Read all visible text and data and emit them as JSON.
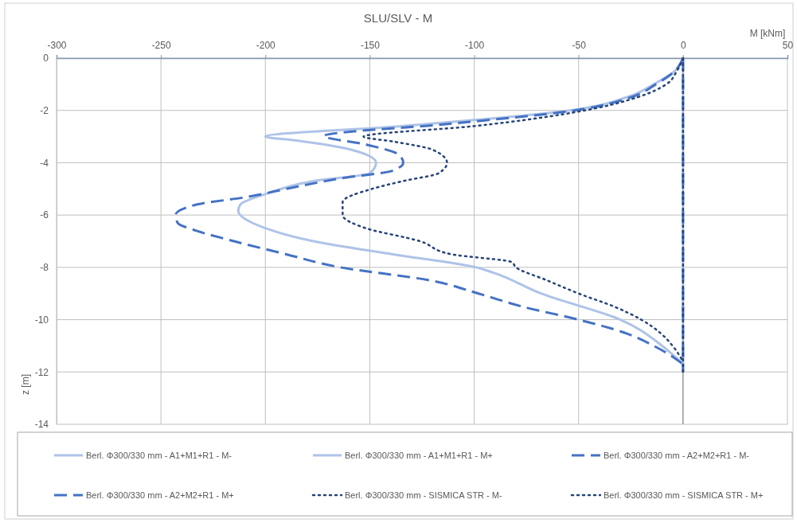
{
  "chart_data": {
    "type": "line",
    "title": "SLU/SLV - M",
    "xlabel": "M [kNm]",
    "ylabel": "z [m]",
    "xlim": [
      -300,
      50
    ],
    "xticks": [
      -300,
      -250,
      -200,
      -150,
      -100,
      -50,
      0,
      50
    ],
    "ylim": [
      -14,
      0
    ],
    "yticks": [
      -14,
      -12,
      -10,
      -8,
      -6,
      -4,
      -2,
      0
    ],
    "grid": true,
    "legend": "bottom",
    "marker": "none",
    "series": [
      {
        "name": "Berl. Φ300/330 mm - A1+M1+R1 - M-",
        "color": "#aec3e8",
        "line_style": "solid",
        "x": [
          0,
          -4,
          -14,
          -27,
          -54,
          -90,
          -135,
          -200,
          -185,
          -159,
          -147,
          -150,
          -177,
          -200,
          -212,
          -213,
          -212,
          -200,
          -177,
          -139,
          -99,
          -91,
          -68,
          -30,
          -10,
          0
        ],
        "values": [
          0,
          -0.5,
          -1,
          -1.5,
          -2,
          -2.3,
          -2.6,
          -3.0,
          -3.15,
          -3.5,
          -4,
          -4.4,
          -4.7,
          -5.2,
          -5.6,
          -5.85,
          -6,
          -6.5,
          -7,
          -7.5,
          -8,
          -8.2,
          -9,
          -10,
          -11,
          -11.7
        ]
      },
      {
        "name": "Berl. Φ300/330 mm - A1+M1+R1 - M+",
        "color": "#aec3e8",
        "line_style": "solid",
        "x": [
          0,
          0
        ],
        "values": [
          0,
          -12
        ]
      },
      {
        "name": "Berl. Φ300/330 mm - A2+M2+R1 - M-",
        "color": "#4472c4",
        "line_style": "dashed",
        "x": [
          0,
          -4,
          -13,
          -25,
          -52,
          -110,
          -172,
          -152,
          -136,
          -134,
          -139,
          -164,
          -190,
          -208,
          -233,
          -243,
          -242,
          -233,
          -215,
          -190,
          -164,
          -121,
          -98,
          -77,
          -50,
          -28,
          -14,
          0
        ],
        "values": [
          0,
          -0.5,
          -1,
          -1.5,
          -2,
          -2.5,
          -2.98,
          -3.3,
          -3.7,
          -4,
          -4.3,
          -4.6,
          -5,
          -5.3,
          -5.6,
          -6,
          -6.3,
          -6.6,
          -7,
          -7.5,
          -8,
          -8.5,
          -9,
          -9.5,
          -10,
          -10.5,
          -11,
          -11.7
        ]
      },
      {
        "name": "Berl. Φ300/330 mm - A2+M2+R1 - M+",
        "color": "#4472c4",
        "line_style": "dashed",
        "x": [
          0,
          0
        ],
        "values": [
          0,
          -12
        ]
      },
      {
        "name": "Berl. Φ300/330 mm - SISMICA STR - M-",
        "color": "#264478",
        "line_style": "dotted",
        "x": [
          0,
          -3,
          -8,
          -22,
          -47,
          -100,
          -153,
          -138,
          -120,
          -113,
          -117,
          -134,
          -149,
          -163,
          -163,
          -152,
          -126,
          -111,
          -82,
          -80,
          -65,
          -50,
          -33,
          -20,
          -11,
          -5,
          0
        ],
        "values": [
          0,
          -0.5,
          -1,
          -1.5,
          -2,
          -2.6,
          -3.0,
          -3.2,
          -3.5,
          -4,
          -4.4,
          -4.7,
          -5,
          -5.5,
          -6,
          -6.5,
          -7,
          -7.5,
          -7.8,
          -8,
          -8.5,
          -9,
          -9.5,
          -10,
          -10.5,
          -11,
          -11.6
        ]
      },
      {
        "name": "Berl. Φ300/330 mm - SISMICA STR - M+",
        "color": "#264478",
        "line_style": "dotted",
        "x": [
          0,
          0
        ],
        "values": [
          0,
          -12
        ]
      }
    ]
  }
}
